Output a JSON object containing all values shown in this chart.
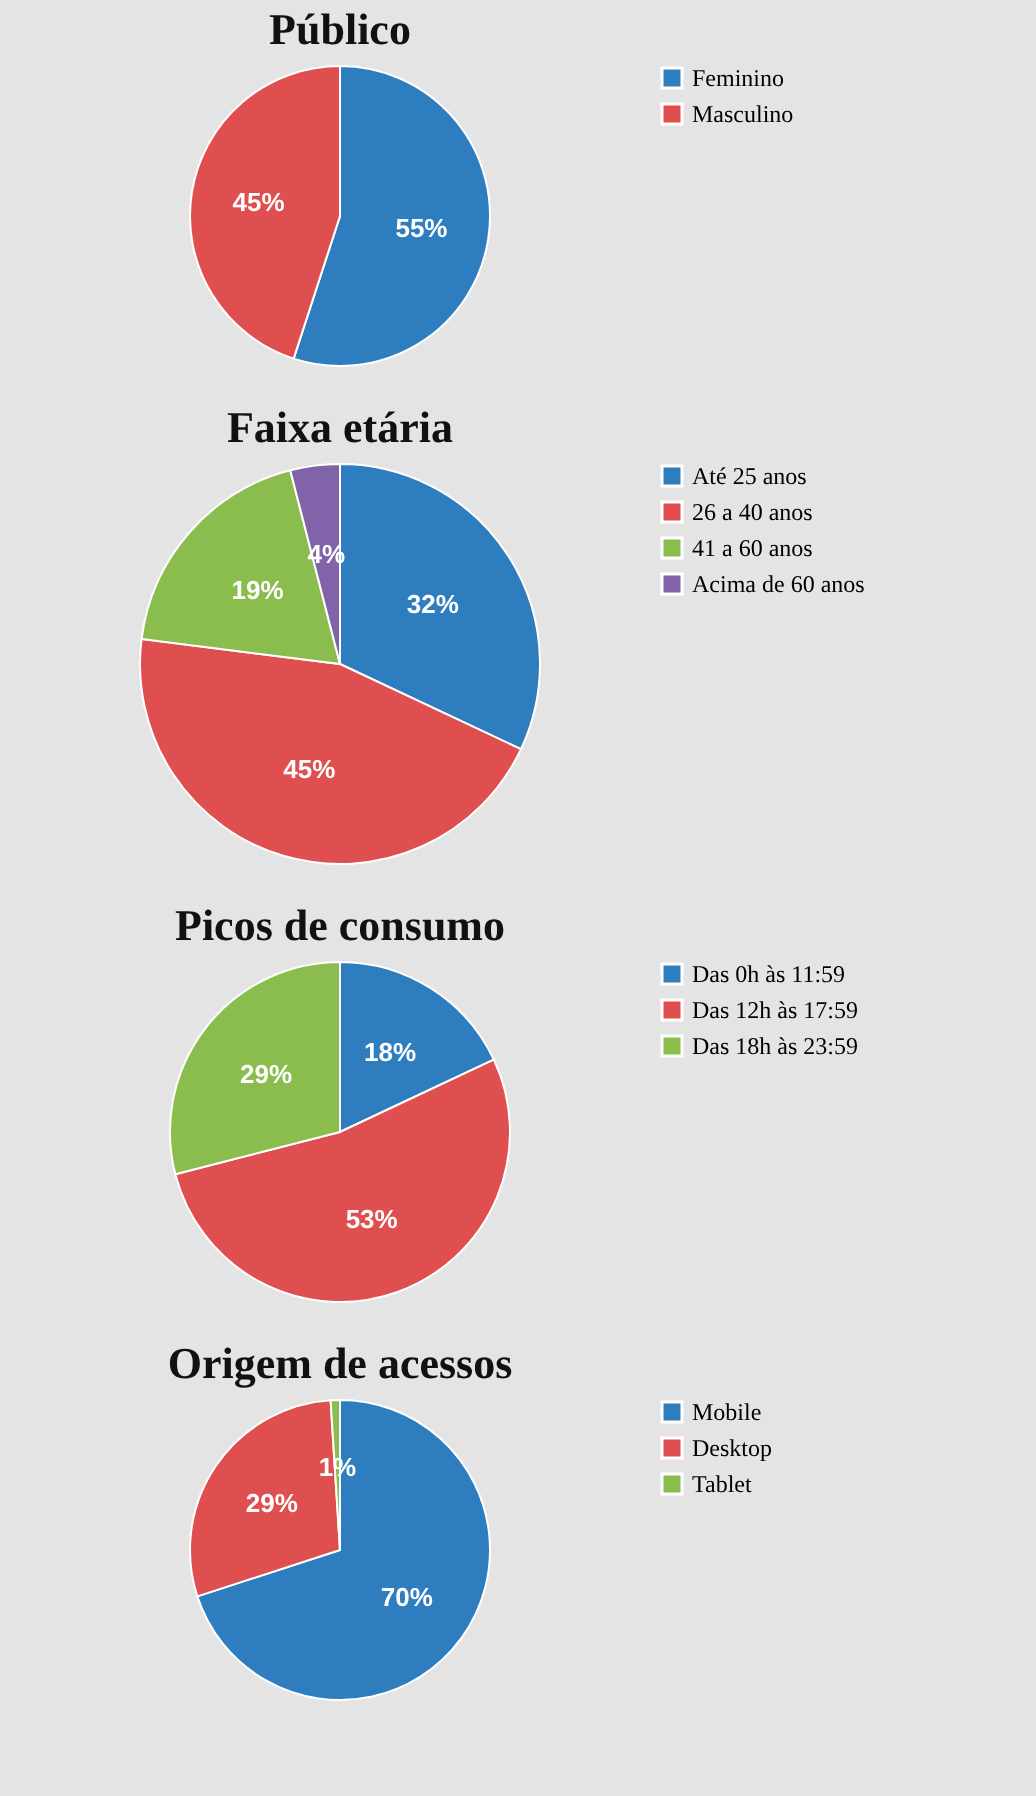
{
  "chart_data": [
    {
      "type": "pie",
      "title": "Público",
      "categories": [
        "Feminino",
        "Masculino"
      ],
      "values": [
        55,
        45
      ],
      "value_labels": [
        "55%",
        "45%"
      ],
      "colors": [
        "#2e7ebf",
        "#e04f4f"
      ],
      "legend": "right"
    },
    {
      "type": "pie",
      "title": "Faixa etária",
      "categories": [
        "Até 25 anos",
        "26 a 40 anos",
        "41 a 60 anos",
        "Acima de 60 anos"
      ],
      "values": [
        32,
        45,
        19,
        4
      ],
      "value_labels": [
        "32%",
        "45%",
        "19%",
        "4%"
      ],
      "colors": [
        "#2e7ebf",
        "#e04f4f",
        "#8bbd4e",
        "#8063a8"
      ],
      "legend": "right"
    },
    {
      "type": "pie",
      "title": "Picos de consumo",
      "categories": [
        "Das 0h às 11:59",
        "Das 12h às 17:59",
        "Das 18h às 23:59"
      ],
      "values": [
        18,
        53,
        29
      ],
      "value_labels": [
        "18%",
        "53%",
        "29%"
      ],
      "colors": [
        "#2e7ebf",
        "#e04f4f",
        "#8bbd4e"
      ],
      "legend": "right"
    },
    {
      "type": "pie",
      "title": "Origem de acessos",
      "categories": [
        "Mobile",
        "Desktop",
        "Tablet"
      ],
      "values": [
        70,
        29,
        1
      ],
      "value_labels": [
        "70%",
        "29%",
        "1%"
      ],
      "colors": [
        "#2e7ebf",
        "#e04f4f",
        "#8bbd4e"
      ],
      "legend": "right"
    }
  ]
}
